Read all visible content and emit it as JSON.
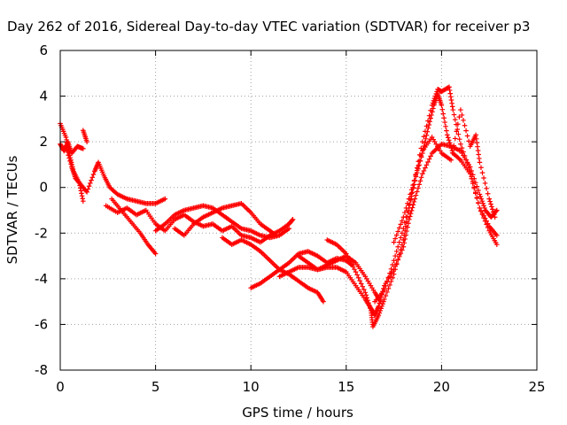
{
  "chart_data": {
    "type": "scatter",
    "title": "Day 262 of 2016, Sidereal Day-to-day VTEC variation (SDTVAR) for receiver p3",
    "xlabel": "GPS time / hours",
    "ylabel": "SDTVAR / TECUs",
    "xlim": [
      0,
      25
    ],
    "ylim": [
      -8,
      6
    ],
    "xticks": [
      "0",
      "5",
      "10",
      "15",
      "20",
      "25"
    ],
    "yticks": [
      "-8",
      "-6",
      "-4",
      "-2",
      "0",
      "2",
      "4",
      "6"
    ],
    "grid": true,
    "marker": "+",
    "color": "#ff0000",
    "series": [
      {
        "points": [
          [
            0.0,
            1.9
          ],
          [
            0.2,
            1.6
          ],
          [
            0.4,
            2.0
          ],
          [
            0.6,
            1.5
          ],
          [
            0.9,
            1.8
          ],
          [
            1.2,
            1.7
          ]
        ]
      },
      {
        "points": [
          [
            0.0,
            2.8
          ],
          [
            0.3,
            2.2
          ],
          [
            0.5,
            1.4
          ],
          [
            0.7,
            0.7
          ],
          [
            1.0,
            0.2
          ],
          [
            1.2,
            -0.6
          ]
        ]
      },
      {
        "points": [
          [
            1.2,
            2.5
          ],
          [
            1.4,
            2.0
          ]
        ]
      },
      {
        "points": [
          [
            0.3,
            1.8
          ],
          [
            0.6,
            0.9
          ],
          [
            0.8,
            0.4
          ],
          [
            1.1,
            0.1
          ],
          [
            1.4,
            -0.2
          ],
          [
            1.8,
            0.7
          ],
          [
            2.0,
            1.1
          ],
          [
            2.3,
            0.5
          ],
          [
            2.6,
            0.0
          ],
          [
            3.0,
            -0.3
          ],
          [
            3.5,
            -0.5
          ],
          [
            4.0,
            -0.6
          ],
          [
            4.5,
            -0.7
          ],
          [
            5.0,
            -0.7
          ],
          [
            5.5,
            -0.5
          ]
        ]
      },
      {
        "points": [
          [
            2.4,
            -0.8
          ],
          [
            3.0,
            -1.1
          ],
          [
            3.5,
            -0.9
          ],
          [
            4.0,
            -1.2
          ],
          [
            4.5,
            -1.0
          ],
          [
            5.0,
            -1.6
          ],
          [
            5.5,
            -1.9
          ],
          [
            6.0,
            -1.4
          ],
          [
            6.5,
            -1.2
          ],
          [
            7.0,
            -1.5
          ],
          [
            7.5,
            -1.7
          ],
          [
            8.0,
            -1.6
          ],
          [
            8.5,
            -1.9
          ],
          [
            9.0,
            -1.7
          ],
          [
            9.5,
            -2.1
          ],
          [
            10.0,
            -2.2
          ],
          [
            10.5,
            -2.4
          ],
          [
            11.0,
            -2.1
          ],
          [
            11.5,
            -1.9
          ],
          [
            12.0,
            -1.6
          ],
          [
            12.2,
            -1.4
          ]
        ]
      },
      {
        "points": [
          [
            2.7,
            -0.5
          ],
          [
            3.2,
            -1.0
          ],
          [
            3.7,
            -1.5
          ],
          [
            4.2,
            -2.0
          ],
          [
            4.6,
            -2.5
          ],
          [
            5.0,
            -2.9
          ]
        ]
      },
      {
        "points": [
          [
            5.0,
            -1.9
          ],
          [
            5.5,
            -1.6
          ],
          [
            6.0,
            -1.2
          ],
          [
            6.5,
            -1.0
          ],
          [
            7.0,
            -0.9
          ],
          [
            7.5,
            -0.8
          ],
          [
            8.0,
            -0.9
          ],
          [
            8.5,
            -1.2
          ],
          [
            9.0,
            -1.5
          ],
          [
            9.5,
            -1.8
          ],
          [
            10.0,
            -1.9
          ],
          [
            10.5,
            -2.1
          ],
          [
            11.0,
            -2.2
          ],
          [
            11.5,
            -2.1
          ],
          [
            12.0,
            -1.8
          ]
        ]
      },
      {
        "points": [
          [
            6.0,
            -1.8
          ],
          [
            6.5,
            -2.1
          ],
          [
            7.0,
            -1.6
          ],
          [
            7.5,
            -1.3
          ],
          [
            8.0,
            -1.1
          ],
          [
            8.5,
            -0.9
          ],
          [
            9.0,
            -0.8
          ],
          [
            9.5,
            -0.7
          ],
          [
            10.0,
            -1.1
          ],
          [
            10.5,
            -1.6
          ],
          [
            11.0,
            -1.9
          ],
          [
            11.3,
            -2.1
          ]
        ]
      },
      {
        "points": [
          [
            8.5,
            -2.2
          ],
          [
            9.0,
            -2.5
          ],
          [
            9.5,
            -2.3
          ],
          [
            10.0,
            -2.5
          ],
          [
            10.5,
            -2.8
          ],
          [
            11.0,
            -3.2
          ],
          [
            11.5,
            -3.6
          ],
          [
            12.0,
            -3.8
          ],
          [
            12.5,
            -4.1
          ],
          [
            13.0,
            -4.4
          ],
          [
            13.5,
            -4.6
          ],
          [
            13.8,
            -5.0
          ]
        ]
      },
      {
        "points": [
          [
            10.0,
            -4.4
          ],
          [
            10.5,
            -4.2
          ],
          [
            11.0,
            -3.9
          ],
          [
            11.5,
            -3.6
          ],
          [
            12.0,
            -3.3
          ],
          [
            12.5,
            -2.9
          ],
          [
            13.0,
            -2.8
          ],
          [
            13.5,
            -3.0
          ],
          [
            14.0,
            -3.3
          ],
          [
            14.5,
            -3.1
          ],
          [
            15.0,
            -3.2
          ],
          [
            15.3,
            -3.4
          ]
        ]
      },
      {
        "points": [
          [
            11.5,
            -3.9
          ],
          [
            12.0,
            -3.7
          ],
          [
            12.5,
            -3.5
          ],
          [
            13.0,
            -3.5
          ],
          [
            13.5,
            -3.6
          ],
          [
            14.0,
            -3.4
          ],
          [
            14.5,
            -3.2
          ],
          [
            15.0,
            -3.0
          ],
          [
            15.5,
            -3.3
          ],
          [
            16.0,
            -3.9
          ],
          [
            16.5,
            -4.6
          ],
          [
            16.8,
            -5.0
          ]
        ]
      },
      {
        "points": [
          [
            12.5,
            -3.0
          ],
          [
            13.0,
            -3.3
          ],
          [
            13.5,
            -3.6
          ],
          [
            14.0,
            -3.5
          ],
          [
            14.5,
            -3.5
          ],
          [
            15.0,
            -3.7
          ],
          [
            15.5,
            -4.3
          ],
          [
            16.0,
            -4.9
          ],
          [
            16.3,
            -5.3
          ],
          [
            16.5,
            -5.6
          ],
          [
            16.7,
            -5.2
          ],
          [
            17.0,
            -4.3
          ],
          [
            17.5,
            -3.6
          ],
          [
            18.0,
            -2.6
          ],
          [
            18.3,
            -1.4
          ],
          [
            18.6,
            -0.5
          ],
          [
            19.0,
            0.6
          ],
          [
            19.5,
            1.5
          ],
          [
            20.0,
            1.9
          ],
          [
            20.5,
            1.8
          ],
          [
            21.0,
            1.6
          ],
          [
            21.5,
            0.9
          ],
          [
            22.0,
            -0.3
          ],
          [
            22.3,
            -1.0
          ],
          [
            22.6,
            -1.3
          ],
          [
            22.9,
            -1.0
          ]
        ]
      },
      {
        "points": [
          [
            14.0,
            -2.3
          ],
          [
            14.5,
            -2.5
          ],
          [
            15.0,
            -2.9
          ],
          [
            15.5,
            -3.7
          ],
          [
            16.0,
            -4.6
          ],
          [
            16.3,
            -5.4
          ],
          [
            16.4,
            -6.1
          ],
          [
            16.7,
            -5.6
          ],
          [
            17.0,
            -4.9
          ],
          [
            17.5,
            -3.8
          ],
          [
            18.0,
            -2.3
          ],
          [
            18.3,
            -0.9
          ],
          [
            18.6,
            0.3
          ],
          [
            19.0,
            1.5
          ],
          [
            19.3,
            2.6
          ],
          [
            19.6,
            3.6
          ],
          [
            19.8,
            4.1
          ],
          [
            20.0,
            3.6
          ],
          [
            20.3,
            2.3
          ],
          [
            20.6,
            1.5
          ],
          [
            21.0,
            1.2
          ],
          [
            21.5,
            0.6
          ],
          [
            22.0,
            -0.9
          ],
          [
            22.5,
            -1.7
          ],
          [
            22.9,
            -2.1
          ]
        ]
      },
      {
        "points": [
          [
            16.5,
            -5.0
          ],
          [
            17.0,
            -4.5
          ],
          [
            17.5,
            -3.2
          ],
          [
            18.0,
            -1.8
          ],
          [
            18.5,
            0.0
          ],
          [
            19.0,
            2.0
          ],
          [
            19.5,
            3.6
          ],
          [
            19.8,
            4.3
          ],
          [
            20.0,
            4.2
          ],
          [
            20.4,
            4.4
          ],
          [
            20.6,
            3.4
          ],
          [
            21.0,
            1.9
          ],
          [
            21.5,
            0.7
          ],
          [
            22.0,
            -0.9
          ],
          [
            22.5,
            -1.9
          ],
          [
            22.9,
            -2.5
          ]
        ]
      },
      {
        "points": [
          [
            17.5,
            -2.4
          ],
          [
            18.0,
            -1.3
          ],
          [
            18.5,
            0.1
          ],
          [
            19.0,
            1.6
          ],
          [
            19.5,
            2.2
          ],
          [
            20.0,
            1.5
          ],
          [
            20.5,
            1.2
          ],
          [
            21.0,
            3.4
          ],
          [
            21.5,
            1.8
          ],
          [
            21.8,
            2.3
          ],
          [
            22.0,
            1.1
          ],
          [
            22.5,
            -0.5
          ],
          [
            22.8,
            -1.3
          ]
        ]
      }
    ]
  }
}
